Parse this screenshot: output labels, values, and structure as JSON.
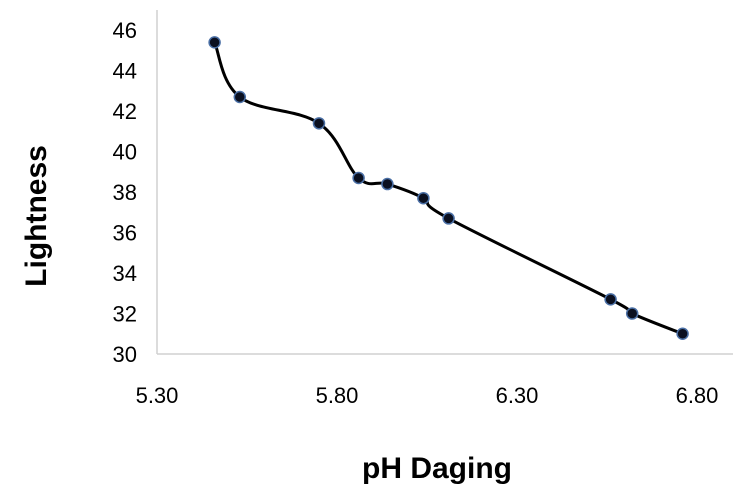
{
  "chart_data": {
    "type": "scatter",
    "title": "",
    "xlabel": "pH Daging",
    "ylabel": "Lightness",
    "xlim": [
      5.3,
      6.9
    ],
    "ylim": [
      30,
      47
    ],
    "x_ticks": [
      5.3,
      5.8,
      6.3,
      6.8
    ],
    "x_tick_labels": [
      "5.30",
      "5.80",
      "6.30",
      "6.80"
    ],
    "y_ticks": [
      30,
      32,
      34,
      36,
      38,
      40,
      42,
      44,
      46
    ],
    "y_tick_labels": [
      "30",
      "32",
      "34",
      "36",
      "38",
      "40",
      "42",
      "44",
      "46"
    ],
    "grid": false,
    "legend": "none",
    "line_style": "smoothed",
    "colors": {
      "line": "#000000",
      "marker_fill": "#0b1020",
      "marker_edge": "#4a6fa5",
      "axis": "#d0d0d0"
    },
    "series": [
      {
        "x": [
          5.46,
          5.53,
          5.75,
          5.86,
          5.94,
          6.04,
          6.11,
          6.56,
          6.62,
          6.76
        ],
        "y": [
          45.4,
          42.7,
          41.4,
          38.7,
          38.4,
          37.7,
          36.7,
          32.7,
          32.0,
          31.0
        ]
      }
    ]
  }
}
